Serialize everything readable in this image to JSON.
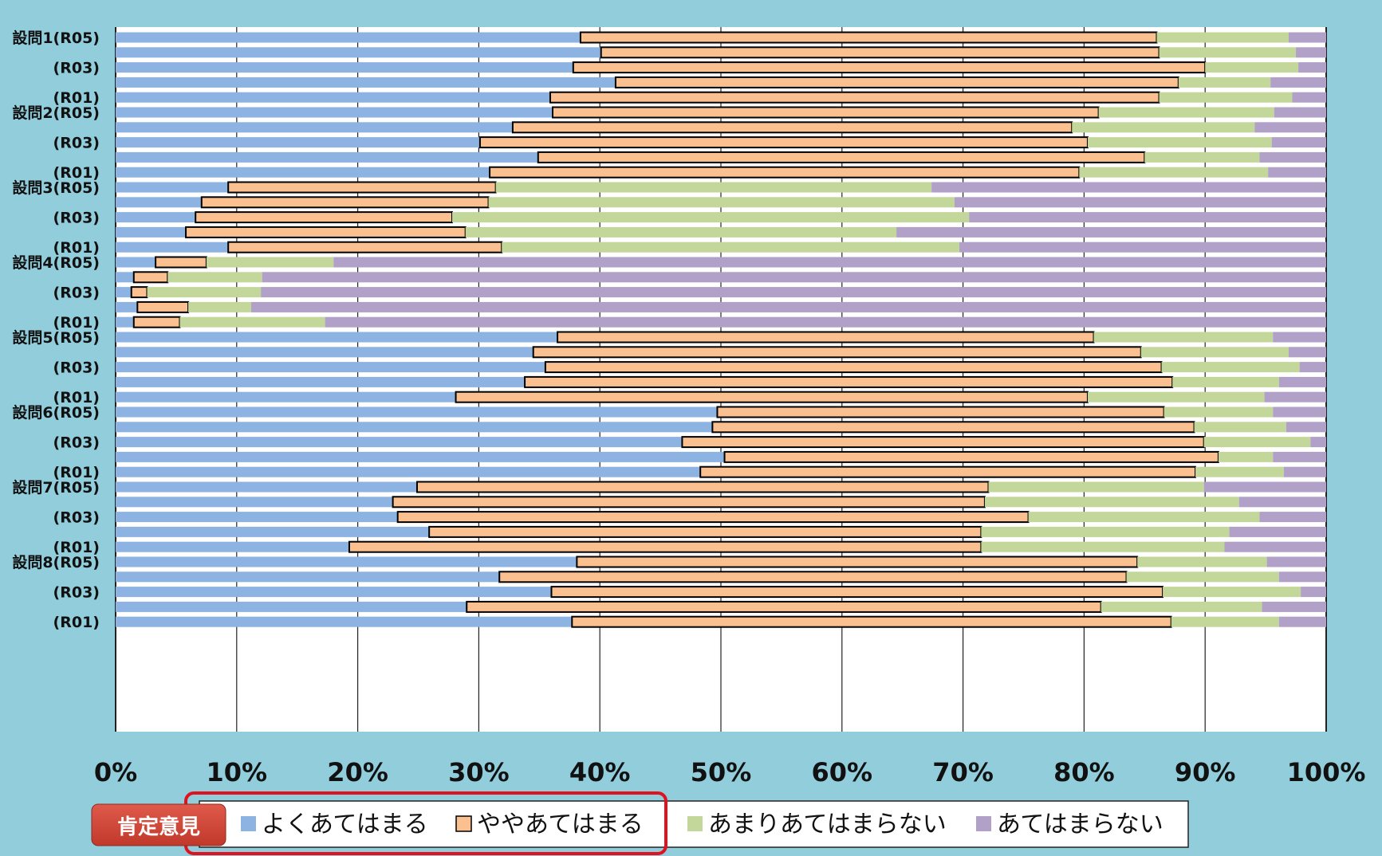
{
  "colors": {
    "background": "#92cddc",
    "plot_area": "#ffffff",
    "strongly_agree": "#8db3e2",
    "somewhat_agree": "#fac090",
    "somewhat_disagree": "#c4d79b",
    "disagree": "#b1a0c7",
    "badge": "#c0392b",
    "highlight": "#e0121f"
  },
  "badge": {
    "label": "肯定意見"
  },
  "chart_data": {
    "type": "bar",
    "orientation": "horizontal",
    "stacked": "percent",
    "xlim": [
      0,
      100
    ],
    "x_ticks": [
      "0%",
      "10%",
      "20%",
      "30%",
      "40%",
      "50%",
      "60%",
      "70%",
      "80%",
      "90%",
      "100%"
    ],
    "grid": true,
    "legend_position": "bottom",
    "series": [
      {
        "name": "よくあてはまる"
      },
      {
        "name": "ややあてはまる"
      },
      {
        "name": "あまりあてはまらない"
      },
      {
        "name": "あてはまらない"
      }
    ],
    "rows": [
      {
        "label": "設問1(R05)",
        "values": [
          38.4,
          47.6,
          10.9,
          3.1
        ]
      },
      {
        "label": "",
        "values": [
          40.1,
          46.1,
          11.3,
          2.5
        ]
      },
      {
        "label": "(R03)",
        "values": [
          37.8,
          52.2,
          7.7,
          2.3
        ]
      },
      {
        "label": "",
        "values": [
          41.3,
          46.5,
          7.6,
          4.6
        ]
      },
      {
        "label": "(R01)",
        "values": [
          35.9,
          50.3,
          11.0,
          2.8
        ]
      },
      {
        "label": "設問2(R05)",
        "values": [
          36.1,
          45.1,
          14.5,
          4.3
        ]
      },
      {
        "label": "",
        "values": [
          32.8,
          46.2,
          15.1,
          5.9
        ]
      },
      {
        "label": "(R03)",
        "values": [
          30.1,
          50.2,
          15.2,
          4.5
        ]
      },
      {
        "label": "",
        "values": [
          34.9,
          50.1,
          9.5,
          5.5
        ]
      },
      {
        "label": "(R01)",
        "values": [
          30.9,
          48.7,
          15.6,
          4.8
        ]
      },
      {
        "label": "設問3(R05)",
        "values": [
          9.3,
          22.1,
          36.0,
          32.6
        ]
      },
      {
        "label": "",
        "values": [
          7.1,
          23.7,
          38.5,
          30.7
        ]
      },
      {
        "label": "(R03)",
        "values": [
          6.6,
          21.2,
          42.7,
          29.5
        ]
      },
      {
        "label": "",
        "values": [
          5.8,
          23.1,
          35.6,
          35.5
        ]
      },
      {
        "label": "(R01)",
        "values": [
          9.3,
          22.6,
          37.8,
          30.3
        ]
      },
      {
        "label": "設問4(R05)",
        "values": [
          3.3,
          4.2,
          10.5,
          82.0
        ]
      },
      {
        "label": "",
        "values": [
          1.5,
          2.8,
          7.8,
          87.9
        ]
      },
      {
        "label": "(R03)",
        "values": [
          1.3,
          1.3,
          9.4,
          88.0
        ]
      },
      {
        "label": "",
        "values": [
          1.8,
          4.2,
          5.2,
          88.8
        ]
      },
      {
        "label": "(R01)",
        "values": [
          1.5,
          3.8,
          12.0,
          82.7
        ]
      },
      {
        "label": "設問5(R05)",
        "values": [
          36.5,
          44.3,
          14.8,
          4.4
        ]
      },
      {
        "label": "",
        "values": [
          34.5,
          50.2,
          12.2,
          3.1
        ]
      },
      {
        "label": "(R03)",
        "values": [
          35.5,
          50.9,
          11.4,
          2.2
        ]
      },
      {
        "label": "",
        "values": [
          33.8,
          53.5,
          8.8,
          3.9
        ]
      },
      {
        "label": "(R01)",
        "values": [
          28.1,
          52.2,
          14.6,
          5.1
        ]
      },
      {
        "label": "設問6(R05)",
        "values": [
          49.7,
          36.9,
          9.0,
          4.4
        ]
      },
      {
        "label": "",
        "values": [
          49.3,
          39.8,
          7.6,
          3.3
        ]
      },
      {
        "label": "(R03)",
        "values": [
          46.8,
          43.1,
          8.8,
          1.3
        ]
      },
      {
        "label": "",
        "values": [
          50.3,
          40.8,
          4.5,
          4.4
        ]
      },
      {
        "label": "(R01)",
        "values": [
          48.3,
          40.9,
          7.3,
          3.5
        ]
      },
      {
        "label": "設問7(R05)",
        "values": [
          24.9,
          47.2,
          17.8,
          10.1
        ]
      },
      {
        "label": "",
        "values": [
          22.9,
          48.9,
          21.0,
          7.2
        ]
      },
      {
        "label": "(R03)",
        "values": [
          23.3,
          52.1,
          19.1,
          5.5
        ]
      },
      {
        "label": "",
        "values": [
          25.9,
          45.6,
          20.5,
          8.0
        ]
      },
      {
        "label": "(R01)",
        "values": [
          19.3,
          52.2,
          20.1,
          8.4
        ]
      },
      {
        "label": "設問8(R05)",
        "values": [
          38.1,
          46.3,
          10.7,
          4.9
        ]
      },
      {
        "label": "",
        "values": [
          31.7,
          51.8,
          12.6,
          3.9
        ]
      },
      {
        "label": "(R03)",
        "values": [
          36.0,
          50.5,
          11.4,
          2.1
        ]
      },
      {
        "label": "",
        "values": [
          29.0,
          52.4,
          13.3,
          5.3
        ]
      },
      {
        "label": "(R01)",
        "values": [
          37.7,
          49.5,
          8.9,
          3.9
        ]
      }
    ]
  }
}
